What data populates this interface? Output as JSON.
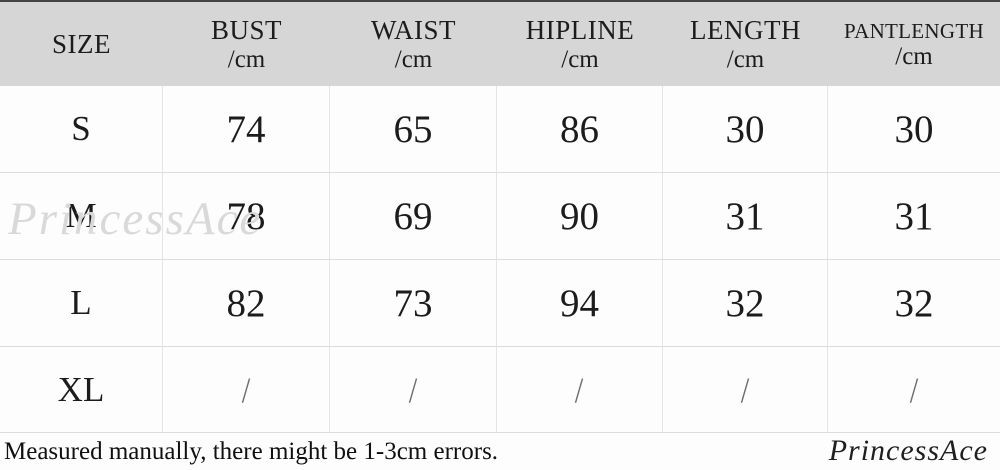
{
  "chart_data": {
    "type": "table",
    "title": "Garment size chart (cm)",
    "columns": [
      {
        "label": "SIZE",
        "unit": ""
      },
      {
        "label": "BUST",
        "unit": "/cm"
      },
      {
        "label": "WAIST",
        "unit": "/cm"
      },
      {
        "label": "HIPLINE",
        "unit": "/cm"
      },
      {
        "label": "LENGTH",
        "unit": "/cm"
      },
      {
        "label": "PANTLENGTH",
        "unit": "/cm"
      }
    ],
    "rows": [
      [
        "S",
        "74",
        "65",
        "86",
        "30",
        "30"
      ],
      [
        "M",
        "78",
        "69",
        "90",
        "31",
        "31"
      ],
      [
        "L",
        "82",
        "73",
        "94",
        "32",
        "32"
      ],
      [
        "XL",
        "/",
        "/",
        "/",
        "/",
        "/"
      ]
    ]
  },
  "note": "Measured manually, there might be 1-3cm errors.",
  "watermarks": {
    "center": "PrincessAce",
    "corner": "PrincessAce"
  },
  "colors": {
    "header_bg": "#d6d6d6",
    "grid_line_vertical": "#e4e4e4",
    "grid_line_horizontal": "#dcdcdc",
    "text": "#1c1c1c",
    "watermark_light": "#d9d9d9",
    "watermark_dark": "#1f1f1f"
  }
}
